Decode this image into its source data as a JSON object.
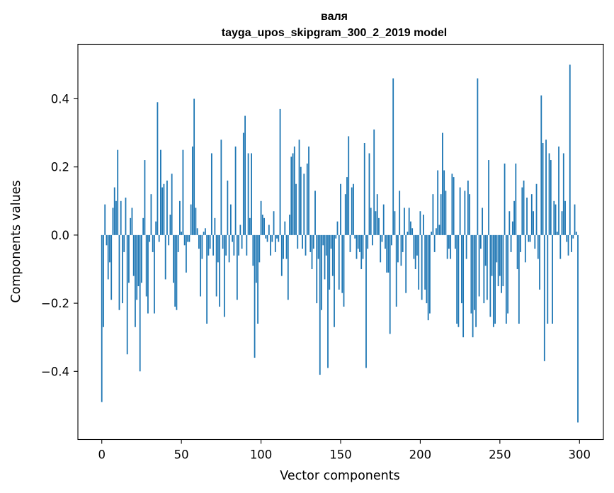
{
  "chart_data": {
    "type": "bar",
    "title": "валя",
    "subtitle": "tayga_upos_skipgram_300_2_2019 model",
    "xlabel": "Vector components",
    "ylabel": "Components values",
    "xlim": [
      -15,
      315
    ],
    "ylim": [
      -0.6,
      0.56
    ],
    "xticks": [
      0,
      50,
      100,
      150,
      200,
      250,
      300
    ],
    "yticks": [
      -0.4,
      -0.2,
      0.0,
      0.2,
      0.4
    ],
    "ytick_labels": [
      "−0.4",
      "−0.2",
      "0.0",
      "0.2",
      "0.4"
    ],
    "bar_color": "#1f77b4",
    "bar_width": 0.8,
    "grid": false,
    "x": [
      0,
      1,
      2,
      3,
      4,
      5,
      6,
      7,
      8,
      9,
      10,
      11,
      12,
      13,
      14,
      15,
      16,
      17,
      18,
      19,
      20,
      21,
      22,
      23,
      24,
      25,
      26,
      27,
      28,
      29,
      30,
      31,
      32,
      33,
      34,
      35,
      36,
      37,
      38,
      39,
      40,
      41,
      42,
      43,
      44,
      45,
      46,
      47,
      48,
      49,
      50,
      51,
      52,
      53,
      54,
      55,
      56,
      57,
      58,
      59,
      60,
      61,
      62,
      63,
      64,
      65,
      66,
      67,
      68,
      69,
      70,
      71,
      72,
      73,
      74,
      75,
      76,
      77,
      78,
      79,
      80,
      81,
      82,
      83,
      84,
      85,
      86,
      87,
      88,
      89,
      90,
      91,
      92,
      93,
      94,
      95,
      96,
      97,
      98,
      99,
      100,
      101,
      102,
      103,
      104,
      105,
      106,
      107,
      108,
      109,
      110,
      111,
      112,
      113,
      114,
      115,
      116,
      117,
      118,
      119,
      120,
      121,
      122,
      123,
      124,
      125,
      126,
      127,
      128,
      129,
      130,
      131,
      132,
      133,
      134,
      135,
      136,
      137,
      138,
      139,
      140,
      141,
      142,
      143,
      144,
      145,
      146,
      147,
      148,
      149,
      150,
      151,
      152,
      153,
      154,
      155,
      156,
      157,
      158,
      159,
      160,
      161,
      162,
      163,
      164,
      165,
      166,
      167,
      168,
      169,
      170,
      171,
      172,
      173,
      174,
      175,
      176,
      177,
      178,
      179,
      180,
      181,
      182,
      183,
      184,
      185,
      186,
      187,
      188,
      189,
      190,
      191,
      192,
      193,
      194,
      195,
      196,
      197,
      198,
      199,
      200,
      201,
      202,
      203,
      204,
      205,
      206,
      207,
      208,
      209,
      210,
      211,
      212,
      213,
      214,
      215,
      216,
      217,
      218,
      219,
      220,
      221,
      222,
      223,
      224,
      225,
      226,
      227,
      228,
      229,
      230,
      231,
      232,
      233,
      234,
      235,
      236,
      237,
      238,
      239,
      240,
      241,
      242,
      243,
      244,
      245,
      246,
      247,
      248,
      249,
      250,
      251,
      252,
      253,
      254,
      255,
      256,
      257,
      258,
      259,
      260,
      261,
      262,
      263,
      264,
      265,
      266,
      267,
      268,
      269,
      270,
      271,
      272,
      273,
      274,
      275,
      276,
      277,
      278,
      279,
      280,
      281,
      282,
      283,
      284,
      285,
      286,
      287,
      288,
      289,
      290,
      291,
      292,
      293,
      294,
      295,
      296,
      297,
      298,
      299
    ],
    "values": [
      -0.49,
      -0.27,
      0.09,
      -0.03,
      -0.13,
      -0.08,
      -0.19,
      0.08,
      0.14,
      0.1,
      0.25,
      -0.22,
      0.1,
      -0.2,
      -0.05,
      0.11,
      -0.35,
      -0.14,
      0.05,
      0.08,
      -0.12,
      -0.27,
      -0.19,
      -0.15,
      -0.4,
      -0.14,
      0.05,
      0.22,
      -0.18,
      -0.23,
      -0.02,
      0.12,
      -0.05,
      -0.23,
      0.04,
      0.39,
      -0.02,
      0.25,
      0.14,
      0.15,
      -0.13,
      0.16,
      -0.03,
      0.06,
      0.18,
      -0.14,
      -0.21,
      -0.22,
      -0.05,
      0.1,
      0.01,
      0.25,
      -0.03,
      -0.11,
      -0.02,
      -0.02,
      0.09,
      0.26,
      0.4,
      0.08,
      0.02,
      -0.04,
      -0.18,
      -0.07,
      0.01,
      0.02,
      -0.26,
      -0.06,
      -0.04,
      0.24,
      -0.06,
      0.05,
      -0.18,
      -0.08,
      -0.21,
      0.28,
      -0.04,
      -0.24,
      -0.06,
      0.16,
      -0.08,
      0.09,
      -0.02,
      -0.06,
      0.26,
      -0.19,
      -0.06,
      0.03,
      -0.04,
      0.3,
      0.35,
      -0.06,
      0.24,
      0.05,
      0.24,
      -0.09,
      -0.36,
      -0.14,
      -0.26,
      -0.08,
      0.1,
      0.06,
      0.05,
      -0.01,
      -0.02,
      0.03,
      -0.06,
      -0.02,
      0.07,
      -0.05,
      -0.01,
      -0.02,
      0.37,
      -0.12,
      -0.07,
      0.04,
      -0.07,
      -0.19,
      0.06,
      0.23,
      0.24,
      0.26,
      0.15,
      -0.04,
      0.28,
      0.2,
      -0.04,
      0.18,
      -0.06,
      0.21,
      0.26,
      -0.05,
      -0.1,
      -0.04,
      0.13,
      -0.2,
      -0.07,
      -0.41,
      -0.22,
      -0.03,
      -0.13,
      -0.06,
      -0.39,
      -0.16,
      -0.04,
      -0.12,
      -0.27,
      -0.01,
      0.04,
      -0.16,
      0.15,
      -0.17,
      -0.21,
      0.12,
      0.17,
      0.29,
      -0.05,
      0.14,
      0.15,
      -0.01,
      -0.07,
      -0.04,
      -0.05,
      -0.1,
      -0.07,
      0.27,
      -0.39,
      -0.04,
      0.24,
      0.08,
      -0.03,
      0.31,
      0.07,
      0.12,
      0.05,
      -0.08,
      -0.02,
      0.09,
      -0.04,
      -0.11,
      -0.11,
      -0.29,
      -0.03,
      0.46,
      0.07,
      -0.21,
      -0.08,
      0.13,
      -0.09,
      -0.05,
      0.08,
      -0.17,
      0.01,
      0.08,
      0.04,
      0.02,
      -0.07,
      -0.1,
      -0.06,
      -0.16,
      0.07,
      -0.19,
      0.06,
      -0.16,
      -0.2,
      -0.25,
      -0.23,
      0.01,
      0.12,
      -0.05,
      0.02,
      0.19,
      0.03,
      0.12,
      0.3,
      0.19,
      0.13,
      -0.07,
      -0.04,
      -0.07,
      0.18,
      0.17,
      -0.04,
      -0.26,
      -0.27,
      0.14,
      -0.2,
      -0.3,
      0.13,
      -0.07,
      0.16,
      0.12,
      -0.23,
      -0.3,
      -0.22,
      -0.27,
      0.46,
      -0.18,
      -0.04,
      0.08,
      -0.2,
      -0.09,
      -0.19,
      0.22,
      -0.24,
      -0.12,
      -0.27,
      -0.26,
      -0.08,
      -0.15,
      -0.12,
      -0.17,
      -0.15,
      0.21,
      -0.26,
      -0.23,
      0.07,
      -0.05,
      0.04,
      0.1,
      0.21,
      -0.1,
      -0.26,
      -0.05,
      0.14,
      0.16,
      -0.08,
      0.11,
      -0.02,
      -0.02,
      0.12,
      0.07,
      -0.04,
      0.15,
      -0.07,
      -0.16,
      0.41,
      0.27,
      -0.37,
      0.28,
      -0.26,
      0.24,
      0.22,
      -0.26,
      0.1,
      0.09,
      0.01,
      0.26,
      -0.07,
      0.07,
      0.24,
      0.1,
      -0.02,
      -0.06,
      0.5,
      -0.05,
      -0.01,
      0.09,
      0.01,
      -0.55
    ]
  }
}
